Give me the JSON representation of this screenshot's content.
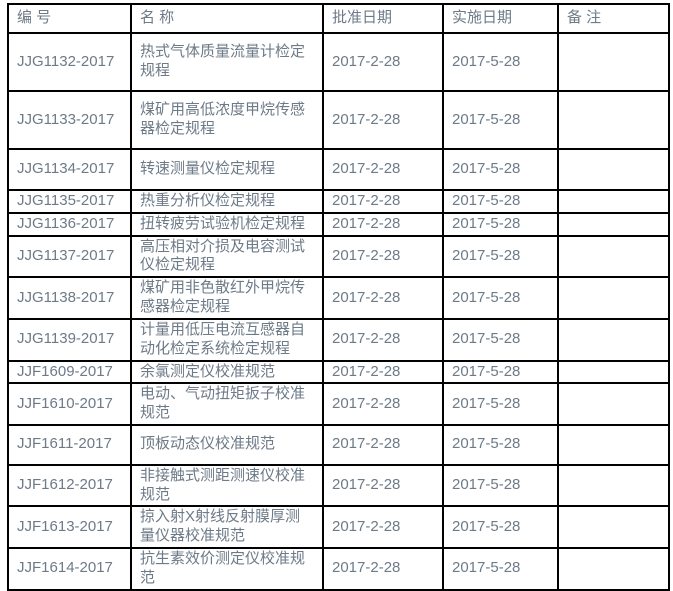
{
  "colors": {
    "text": "#6d7a87",
    "border": "#000000",
    "background": "#ffffff"
  },
  "table": {
    "headers": {
      "code": "编 号",
      "name": "名 称",
      "approval_date": "批准日期",
      "implementation_date": "实施日期",
      "remark": "备 注"
    },
    "rows": [
      {
        "code": "JJG1132-2017",
        "name": "热式气体质量流量计检定规程",
        "approval_date": "2017-2-28",
        "implementation_date": "2017-5-28",
        "remark": ""
      },
      {
        "code": "JJG1133-2017",
        "name": "煤矿用高低浓度甲烷传感器检定规程",
        "approval_date": "2017-2-28",
        "implementation_date": "2017-5-28",
        "remark": ""
      },
      {
        "code": "JJG1134-2017",
        "name": "转速测量仪检定规程",
        "approval_date": "2017-2-28",
        "implementation_date": "2017-5-28",
        "remark": ""
      },
      {
        "code": "JJG1135-2017",
        "name": "热重分析仪检定规程",
        "approval_date": "2017-2-28",
        "implementation_date": "2017-5-28",
        "remark": ""
      },
      {
        "code": "JJG1136-2017",
        "name": "扭转疲劳试验机检定规程",
        "approval_date": "2017-2-28",
        "implementation_date": "2017-5-28",
        "remark": ""
      },
      {
        "code": "JJG1137-2017",
        "name": "高压相对介损及电容测试仪检定规程",
        "approval_date": "2017-2-28",
        "implementation_date": "2017-5-28",
        "remark": ""
      },
      {
        "code": "JJG1138-2017",
        "name": "煤矿用非色散红外甲烷传感器检定规程",
        "approval_date": "2017-2-28",
        "implementation_date": "2017-5-28",
        "remark": ""
      },
      {
        "code": "JJG1139-2017",
        "name": "计量用低压电流互感器自动化检定系统检定规程",
        "approval_date": "2017-2-28",
        "implementation_date": "2017-5-28",
        "remark": ""
      },
      {
        "code": "JJF1609-2017",
        "name": "余氯测定仪校准规范",
        "approval_date": "2017-2-28",
        "implementation_date": "2017-5-28",
        "remark": ""
      },
      {
        "code": "JJF1610-2017",
        "name": "电动、气动扭矩扳子校准规范",
        "approval_date": "2017-2-28",
        "implementation_date": "2017-5-28",
        "remark": ""
      },
      {
        "code": "JJF1611-2017",
        "name": "顶板动态仪校准规范",
        "approval_date": "2017-2-28",
        "implementation_date": "2017-5-28",
        "remark": ""
      },
      {
        "code": "JJF1612-2017",
        "name": "非接触式测距测速仪校准规范",
        "approval_date": "2017-2-28",
        "implementation_date": "2017-5-28",
        "remark": ""
      },
      {
        "code": "JJF1613-2017",
        "name": "掠入射X射线反射膜厚测量仪器校准规范",
        "approval_date": "2017-2-28",
        "implementation_date": "2017-5-28",
        "remark": ""
      },
      {
        "code": "JJF1614-2017",
        "name": "抗生素效价测定仪校准规范",
        "approval_date": "2017-2-28",
        "implementation_date": "2017-5-28",
        "remark": ""
      }
    ]
  }
}
